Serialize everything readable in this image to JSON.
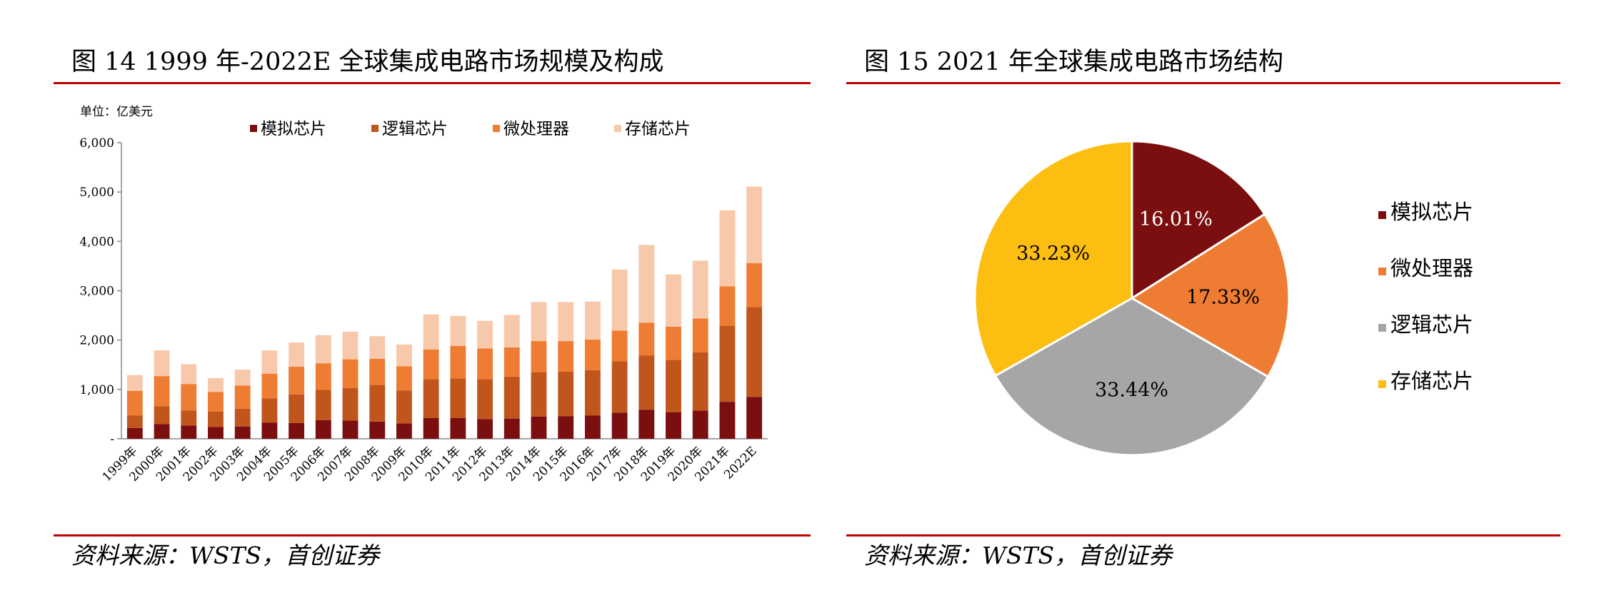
{
  "left": {
    "title": "图  14 1999 年-2022E 全球集成电路市场规模及构成",
    "source": "资料来源：WSTS，首创证券",
    "chart_data": {
      "type": "bar",
      "stacked": true,
      "unit_label": "单位：亿美元",
      "categories": [
        "1999年",
        "2000年",
        "2001年",
        "2002年",
        "2003年",
        "2004年",
        "2005年",
        "2006年",
        "2007年",
        "2008年",
        "2009年",
        "2010年",
        "2011年",
        "2012年",
        "2013年",
        "2014年",
        "2015年",
        "2016年",
        "2017年",
        "2018年",
        "2019年",
        "2020年",
        "2021年",
        "2022E"
      ],
      "series": [
        {
          "name": "模拟芯片",
          "color": "#7b0e0e",
          "values": [
            220,
            300,
            270,
            240,
            250,
            330,
            320,
            380,
            370,
            350,
            310,
            420,
            420,
            400,
            410,
            450,
            460,
            470,
            530,
            590,
            540,
            570,
            750,
            850
          ]
        },
        {
          "name": "逻辑芯片",
          "color": "#c0561c",
          "values": [
            250,
            360,
            300,
            310,
            360,
            490,
            580,
            610,
            660,
            740,
            670,
            790,
            800,
            810,
            850,
            900,
            900,
            920,
            1040,
            1100,
            1060,
            1180,
            1540,
            1820
          ]
        },
        {
          "name": "微处理器",
          "color": "#ee7c32",
          "values": [
            500,
            610,
            540,
            400,
            470,
            500,
            560,
            540,
            580,
            530,
            490,
            600,
            660,
            620,
            590,
            630,
            620,
            620,
            620,
            660,
            670,
            690,
            800,
            890
          ]
        },
        {
          "name": "存储芯片",
          "color": "#f8c8aa",
          "values": [
            320,
            520,
            400,
            280,
            320,
            470,
            490,
            570,
            560,
            460,
            440,
            710,
            610,
            560,
            660,
            790,
            790,
            770,
            1240,
            1580,
            1060,
            1170,
            1540,
            1550
          ]
        }
      ],
      "ylim": [
        0,
        6000
      ],
      "yticks": [
        0,
        1000,
        2000,
        3000,
        4000,
        5000,
        6000
      ],
      "ytick_labels": [
        "-",
        "1,000",
        "2,000",
        "3,000",
        "4,000",
        "5,000",
        "6,000"
      ],
      "legend_position": "top"
    }
  },
  "right": {
    "title": "图  15 2021 年全球集成电路市场结构",
    "source": "资料来源：WSTS，首创证券",
    "chart_data": {
      "type": "pie",
      "slices": [
        {
          "name": "模拟芯片",
          "value": 16.01,
          "label": "16.01%",
          "color": "#7b0e0e",
          "label_color": "#ffffff"
        },
        {
          "name": "微处理器",
          "value": 17.33,
          "label": "17.33%",
          "color": "#ee7c32",
          "label_color": "#000000"
        },
        {
          "name": "逻辑芯片",
          "value": 33.44,
          "label": "33.44%",
          "color": "#a6a6a6",
          "label_color": "#000000"
        },
        {
          "name": "存储芯片",
          "value": 33.23,
          "label": "33.23%",
          "color": "#fdbe12",
          "label_color": "#000000"
        }
      ],
      "legend_position": "right"
    }
  }
}
